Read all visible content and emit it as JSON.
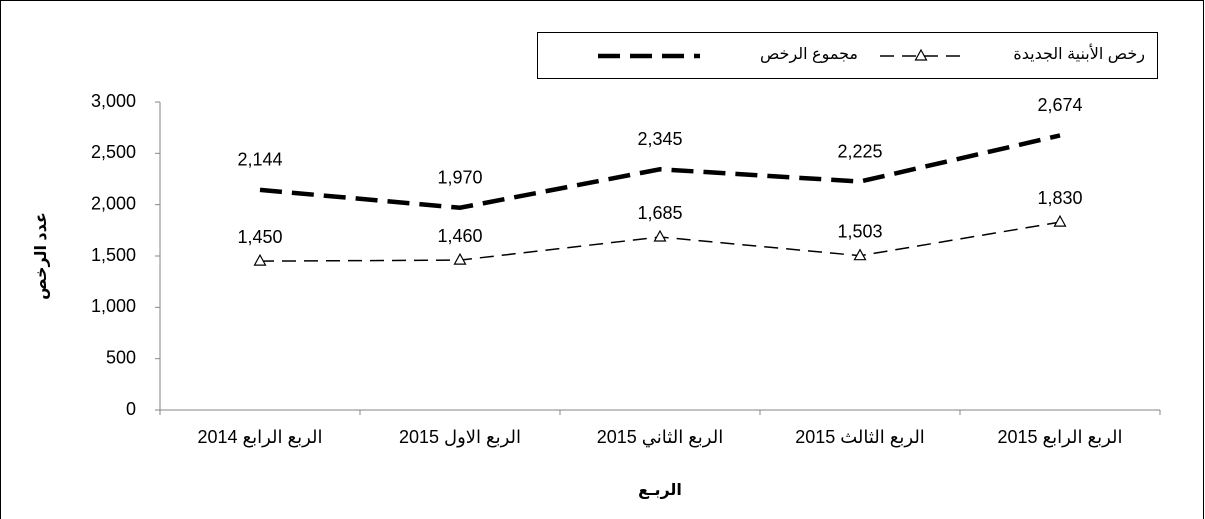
{
  "chart_data": {
    "type": "line",
    "categories": [
      "الربع الرابع 2014",
      "الربع الاول 2015",
      "الربع الثاني 2015",
      "الربع الثالث 2015",
      "الربع الرابع 2015"
    ],
    "series": [
      {
        "name": "رخص الأبنية  الجديدة",
        "color": "#000000",
        "marker": "triangle",
        "values": [
          1450,
          1460,
          1685,
          1503,
          1830
        ],
        "value_labels": [
          "1,450",
          "1,460",
          "1,685",
          "1,503",
          "1,830"
        ]
      },
      {
        "name": "مجموع الرخص",
        "color": "#000000",
        "values": [
          2144,
          1970,
          2345,
          2225,
          2674
        ],
        "value_labels": [
          "2,144",
          "1,970",
          "2,345",
          "2,225",
          "2,674"
        ]
      }
    ],
    "xlabel": "الربـع",
    "ylabel": "عدد الرخص",
    "ylim": [
      0,
      3000
    ],
    "yticks": [
      0,
      500,
      {
        "value": 1000,
        "label": "1,000"
      },
      {
        "value": 1500,
        "label": "1,500"
      },
      {
        "value": 2000,
        "label": "2,000"
      },
      {
        "value": 2500,
        "label": "2,500"
      },
      {
        "value": 3000,
        "label": "3,000"
      }
    ],
    "legend": "top"
  }
}
